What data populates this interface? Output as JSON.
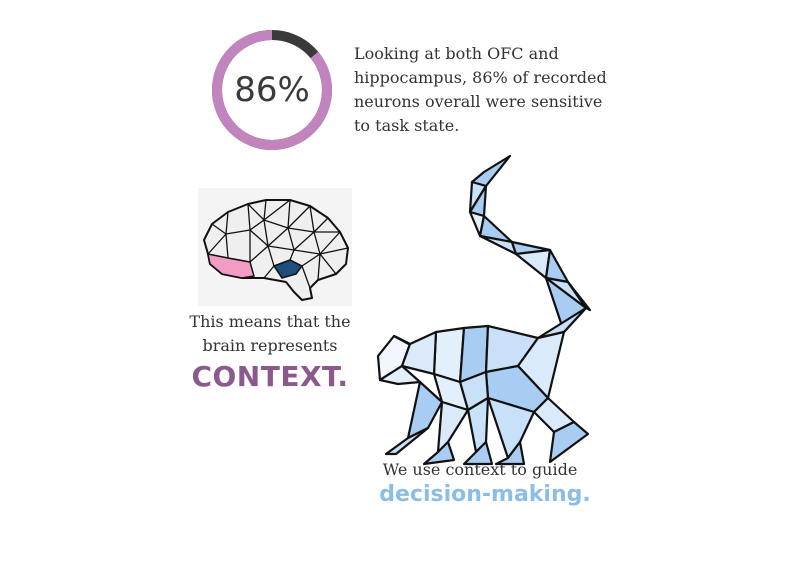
{
  "stat": {
    "percent": 86,
    "percent_label": "86%",
    "description": "Looking at both OFC and hippocampus, 86% of recorded neurons overall were sensitive to task state."
  },
  "brain_section": {
    "caption": "This means that the brain represents",
    "emphasis": "CONTEXT."
  },
  "monkey_section": {
    "caption": "We use context to guide",
    "emphasis": "decision-making."
  },
  "colors": {
    "gauge_fill": "#c184bf",
    "gauge_rest": "#3a3a3a",
    "context": "#8a5a8d",
    "decision": "#8cbde8",
    "brain_ofc": "#f29bc4",
    "brain_hippocampus": "#1f4e7a",
    "monkey_blue": "#a9cdf2"
  },
  "icons": [
    "donut-gauge-icon",
    "brain-icon",
    "monkey-icon"
  ]
}
